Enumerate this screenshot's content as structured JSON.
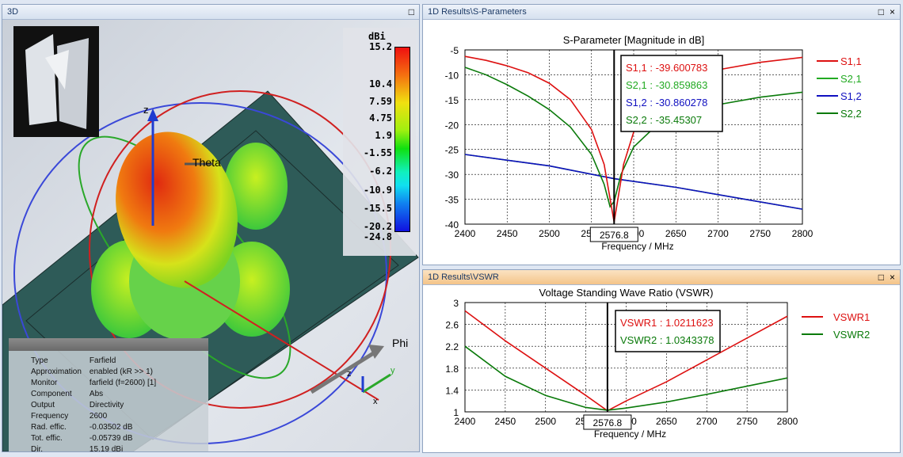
{
  "panels": {
    "threeD": {
      "title": "3D"
    },
    "sparams": {
      "title": "1D Results\\S-Parameters"
    },
    "vswr": {
      "title": "1D Results\\VSWR"
    }
  },
  "window_buttons": {
    "maximize": "□",
    "close": "×"
  },
  "view3d": {
    "axis_labels": {
      "z": "z",
      "theta": "Theta",
      "phi": "Phi",
      "x": "x",
      "y": "y"
    },
    "colorbar": {
      "unit": "dBi",
      "ticks": [
        "15.2",
        "10.4",
        "7.59",
        "4.75",
        "1.9",
        "-1.55",
        "-6.2",
        "-10.9",
        "-15.5",
        "-20.2",
        "-24.8"
      ]
    },
    "info": [
      {
        "k": "Type",
        "v": "Farfield"
      },
      {
        "k": "Approximation",
        "v": "enabled (kR >> 1)"
      },
      {
        "k": "Monitor",
        "v": "farfield (f=2600) [1]"
      },
      {
        "k": "Component",
        "v": "Abs"
      },
      {
        "k": "Output",
        "v": "Directivity"
      },
      {
        "k": "Frequency",
        "v": "2600"
      },
      {
        "k": "Rad. effic.",
        "v": "-0.03502 dB"
      },
      {
        "k": "Tot. effic.",
        "v": "-0.05739 dB"
      },
      {
        "k": "Dir.",
        "v": "15.19 dBi"
      }
    ]
  },
  "chart_data": [
    {
      "type": "line",
      "title": "S-Parameter [Magnitude in dB]",
      "xlabel": "Frequency / MHz",
      "ylabel": "",
      "xlim": [
        2400,
        2800
      ],
      "ylim": [
        -40,
        -5
      ],
      "xticks": [
        2400,
        2450,
        2500,
        2550,
        2600,
        2650,
        2700,
        2750,
        2800
      ],
      "yticks": [
        -5,
        -10,
        -15,
        -20,
        -25,
        -30,
        -35,
        -40
      ],
      "grid": true,
      "legend": "right",
      "marker": {
        "x": 2576.8,
        "label": "2576.8"
      },
      "series": [
        {
          "name": "S2,1",
          "color": "#22aa22",
          "readout": "S2,1 : -30.859863",
          "x": [
            2400,
            2500,
            2576.8,
            2650,
            2800
          ],
          "y": [
            -26,
            -28.3,
            -30.86,
            -32.6,
            -37
          ]
        },
        {
          "name": "S1,2",
          "color": "#1010c0",
          "readout": "S1,2 : -30.860278",
          "x": [
            2400,
            2500,
            2576.8,
            2650,
            2800
          ],
          "y": [
            -26,
            -28.3,
            -30.86,
            -32.6,
            -37
          ]
        },
        {
          "name": "S2,2",
          "color": "#0a7a0a",
          "readout": "S2,2 : -35.45307",
          "x": [
            2400,
            2425,
            2450,
            2475,
            2500,
            2525,
            2550,
            2565,
            2572,
            2576.8,
            2585,
            2600,
            2625,
            2650,
            2700,
            2750,
            2800
          ],
          "y": [
            -8.5,
            -10,
            -12,
            -14.3,
            -17,
            -20.5,
            -26,
            -32,
            -36.5,
            -35.45,
            -30,
            -24.5,
            -20.5,
            -18.3,
            -16,
            -14.5,
            -13.5
          ]
        },
        {
          "name": "S1,1",
          "color": "#dd1111",
          "readout": "S1,1 : -39.600783",
          "x": [
            2400,
            2425,
            2450,
            2475,
            2500,
            2525,
            2550,
            2565,
            2576.8,
            2588,
            2600,
            2625,
            2650,
            2675,
            2700,
            2750,
            2800
          ],
          "y": [
            -6.3,
            -7.1,
            -8.2,
            -9.6,
            -11.7,
            -15,
            -21,
            -28,
            -39.6,
            -28,
            -21.5,
            -15.5,
            -12.3,
            -10.3,
            -9,
            -7.5,
            -6.5
          ]
        }
      ],
      "legend_order": [
        "S1,1",
        "S2,1",
        "S1,2",
        "S2,2"
      ]
    },
    {
      "type": "line",
      "title": "Voltage Standing Wave Ratio (VSWR)",
      "xlabel": "Frequency / MHz",
      "ylabel": "",
      "xlim": [
        2400,
        2800
      ],
      "ylim": [
        1,
        3
      ],
      "xticks": [
        2400,
        2450,
        2500,
        2550,
        2600,
        2650,
        2700,
        2750,
        2800
      ],
      "yticks": [
        1,
        1.4,
        1.8,
        2.2,
        2.6,
        3
      ],
      "grid": true,
      "legend": "right",
      "marker": {
        "x": 2576.8,
        "label": "2576.8"
      },
      "series": [
        {
          "name": "VSWR1",
          "color": "#dd1111",
          "readout": "VSWR1 : 1.0211623",
          "x": [
            2400,
            2450,
            2500,
            2550,
            2576.8,
            2600,
            2650,
            2700,
            2750,
            2800
          ],
          "y": [
            2.85,
            2.3,
            1.8,
            1.3,
            1.02,
            1.2,
            1.55,
            1.95,
            2.35,
            2.75
          ]
        },
        {
          "name": "VSWR2",
          "color": "#0a7a0a",
          "readout": "VSWR2 : 1.0343378",
          "x": [
            2400,
            2450,
            2500,
            2550,
            2576.8,
            2600,
            2650,
            2700,
            2750,
            2800
          ],
          "y": [
            2.2,
            1.65,
            1.3,
            1.08,
            1.03,
            1.07,
            1.18,
            1.32,
            1.47,
            1.62
          ]
        }
      ],
      "legend_order": [
        "VSWR1",
        "VSWR2"
      ]
    }
  ]
}
